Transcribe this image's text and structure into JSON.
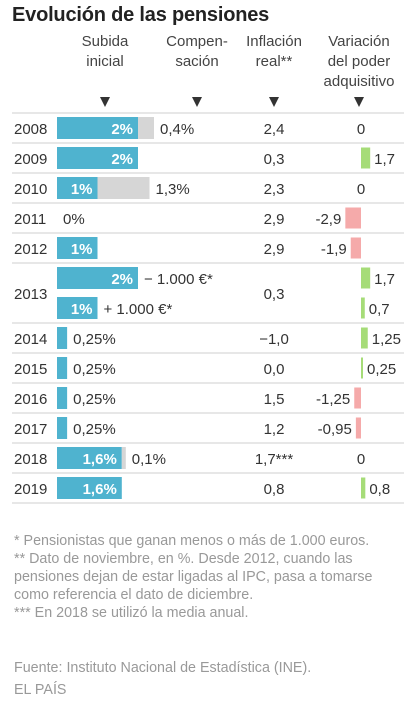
{
  "title": "Evolución de las pensiones",
  "columns": {
    "subida": [
      "Subida",
      "inicial"
    ],
    "compensacion": [
      "Compen-",
      "sación"
    ],
    "inflacion": [
      "Inflación",
      "real**"
    ],
    "variacion": [
      "Variación",
      "del poder",
      "adquisitivo"
    ]
  },
  "colors": {
    "bar": "#4fb3cf",
    "compensation": "#d6d6d6",
    "positive": "#a6dc78",
    "negative": "#f5aaaa",
    "rule": "#cfcfcf"
  },
  "chart_data": {
    "type": "table",
    "rows": [
      {
        "year": "2008",
        "bars": [
          {
            "value": 2,
            "label": "2%",
            "comp": 0.4,
            "comp_label": "0,4%"
          }
        ],
        "inflation": "2,4",
        "variation": 0,
        "variation_label": "0"
      },
      {
        "year": "2009",
        "bars": [
          {
            "value": 2,
            "label": "2%"
          }
        ],
        "inflation": "0,3",
        "variation": 1.7,
        "variation_label": "1,7"
      },
      {
        "year": "2010",
        "bars": [
          {
            "value": 1,
            "label": "1%",
            "comp": 1.3,
            "comp_label": "1,3%"
          }
        ],
        "inflation": "2,3",
        "variation": 0,
        "variation_label": "0"
      },
      {
        "year": "2011",
        "bars": [
          {
            "value": 0,
            "label": "0%"
          }
        ],
        "inflation": "2,9",
        "variation": -2.9,
        "variation_label": "-2,9"
      },
      {
        "year": "2012",
        "bars": [
          {
            "value": 1,
            "label": "1%"
          }
        ],
        "inflation": "2,9",
        "variation": -1.9,
        "variation_label": "-1,9"
      },
      {
        "year": "2013",
        "bars": [
          {
            "value": 2,
            "label": "2%",
            "note": "− 1.000 €*",
            "variation": 1.7,
            "variation_label": "1,7"
          },
          {
            "value": 1,
            "label": "1%",
            "note": "+ 1.000 €*",
            "variation": 0.7,
            "variation_label": "0,7"
          }
        ],
        "inflation": "0,3"
      },
      {
        "year": "2014",
        "bars": [
          {
            "value": 0.25,
            "label": "0,25%"
          }
        ],
        "inflation": "−1,0",
        "variation": 1.25,
        "variation_label": "1,25"
      },
      {
        "year": "2015",
        "bars": [
          {
            "value": 0.25,
            "label": "0,25%"
          }
        ],
        "inflation": "0,0",
        "variation": 0.25,
        "variation_label": "0,25"
      },
      {
        "year": "2016",
        "bars": [
          {
            "value": 0.25,
            "label": "0,25%"
          }
        ],
        "inflation": "1,5",
        "variation": -1.25,
        "variation_label": "-1,25"
      },
      {
        "year": "2017",
        "bars": [
          {
            "value": 0.25,
            "label": "0,25%"
          }
        ],
        "inflation": "1,2",
        "variation": -0.95,
        "variation_label": "-0,95"
      },
      {
        "year": "2018",
        "bars": [
          {
            "value": 1.6,
            "label": "1,6%",
            "comp": 0.1,
            "comp_label": "0,1%"
          }
        ],
        "inflation": "1,7***",
        "variation": 0,
        "variation_label": "0"
      },
      {
        "year": "2019",
        "bars": [
          {
            "value": 1.6,
            "label": "1,6%"
          }
        ],
        "inflation": "0,8",
        "variation": 0.8,
        "variation_label": "0,8"
      }
    ]
  },
  "notes": [
    "* Pensionistas que ganan menos o más de 1.000 euros.",
    "** Dato de noviembre, en %. Desde 2012, cuando las pensiones dejan de estar ligadas al IPC, pasa a tomarse como referencia el dato de diciembre.",
    "*** En 2018 se utilizó la media anual."
  ],
  "source": "Fuente: Instituto Nacional de Estadística (INE).",
  "credit": "EL PAÍS"
}
